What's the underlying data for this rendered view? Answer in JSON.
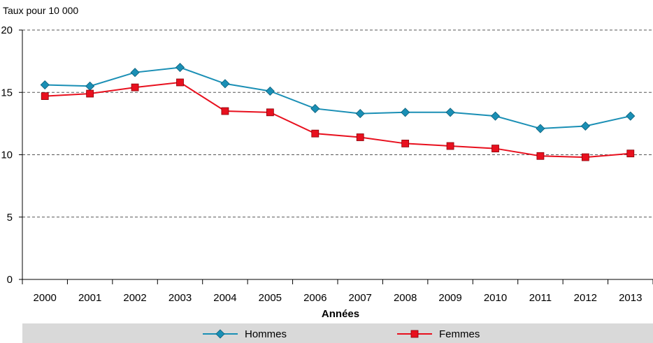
{
  "chart_data": {
    "type": "line",
    "ylabel": "Taux pour 10 000",
    "xlabel": "Années",
    "x": [
      "2000",
      "2001",
      "2002",
      "2003",
      "2004",
      "2005",
      "2006",
      "2007",
      "2008",
      "2009",
      "2010",
      "2011",
      "2012",
      "2013"
    ],
    "ylim": [
      0,
      20
    ],
    "yticks": [
      0,
      5,
      10,
      15,
      20
    ],
    "grid": true,
    "legend": "bottom",
    "series": [
      {
        "name": "Hommes",
        "color": "#1a8fb5",
        "marker": "diamond",
        "values": [
          15.6,
          15.5,
          16.6,
          17.0,
          15.7,
          15.1,
          13.7,
          13.3,
          13.4,
          13.4,
          13.1,
          12.1,
          12.3,
          13.1
        ]
      },
      {
        "name": "Femmes",
        "color": "#e8101e",
        "marker": "square",
        "values": [
          14.7,
          14.9,
          15.4,
          15.8,
          13.5,
          13.4,
          11.7,
          11.4,
          10.9,
          10.7,
          10.5,
          9.9,
          9.8,
          10.1
        ]
      }
    ]
  }
}
